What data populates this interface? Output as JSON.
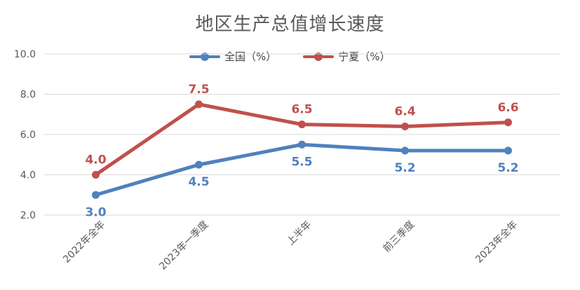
{
  "chart_data": {
    "type": "line",
    "title": "地区生产总值增长速度",
    "categories": [
      "2022年全年",
      "2023年一季度",
      "上半年",
      "前三季度",
      "2023年全年"
    ],
    "series": [
      {
        "name": "全国（%）",
        "values": [
          3.0,
          4.5,
          5.5,
          5.2,
          5.2
        ],
        "color": "#4F81BD",
        "label_position": "below"
      },
      {
        "name": "宁夏（%）",
        "values": [
          4.0,
          7.5,
          6.5,
          6.4,
          6.6
        ],
        "color": "#C0504D",
        "label_position": "above"
      }
    ],
    "yticks": [
      "2.0",
      "4.0",
      "6.0",
      "8.0",
      "10.0"
    ],
    "ylim": [
      2.0,
      10.0
    ],
    "grid": true,
    "legend_position": "top"
  }
}
